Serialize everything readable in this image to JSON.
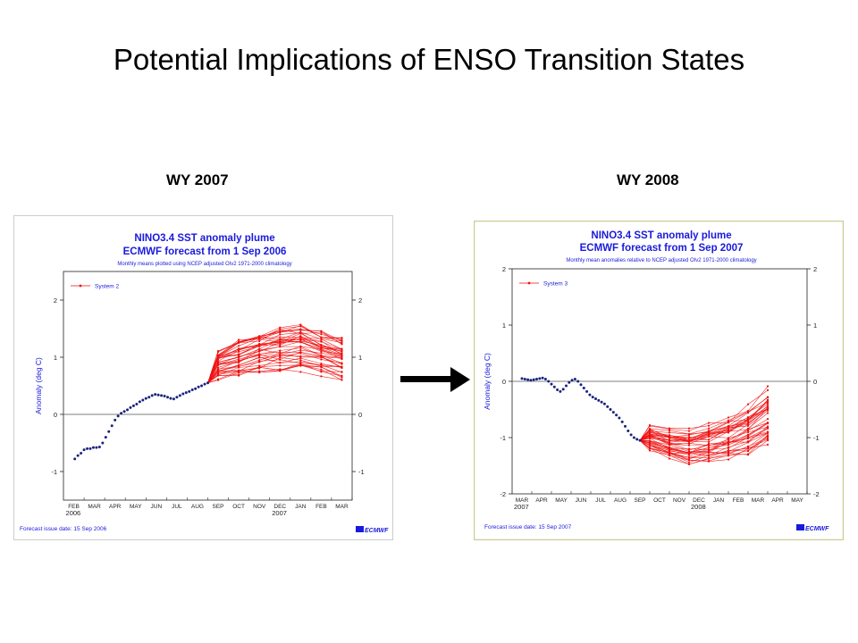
{
  "slide": {
    "title": "Potential Implications of ENSO Transition States",
    "left_label": "WY 2007",
    "right_label": "WY 2008"
  },
  "colors": {
    "observed": "#1a237e",
    "forecast": "#ee1111",
    "panel_border": "#cccc99",
    "title_blue": "#1a1adc"
  },
  "icons": {
    "arrow": "right-arrow-icon",
    "logo": "ecmwf-logo-icon"
  },
  "chart_data": [
    {
      "type": "line",
      "title": "NINO3.4 SST anomaly plume",
      "subtitle": "ECMWF forecast from  1 Sep 2006",
      "note": "Monthly means plotted using NCEP adjusted OIv2 1971-2000 climatology",
      "ylabel": "Anomaly (deg C)",
      "xlabel": "",
      "ylim": [
        -1.5,
        2.5
      ],
      "yticks": [
        -1,
        0,
        1,
        2
      ],
      "months": [
        "FEB",
        "MAR",
        "APR",
        "MAY",
        "JUN",
        "JUL",
        "AUG",
        "SEP",
        "OCT",
        "NOV",
        "DEC",
        "JAN",
        "FEB",
        "MAR"
      ],
      "years": [
        {
          "label": "2006",
          "at": "FEB"
        },
        {
          "label": "2007",
          "at": "DEC"
        }
      ],
      "legend": [
        "System 2"
      ],
      "legend_position": "top-left",
      "zero_line": true,
      "footer": "Forecast issue date: 15 Sep 2006",
      "logo": "ECMWF",
      "observed": {
        "x": [
          0.05,
          0.2,
          0.35,
          0.5,
          0.65,
          0.8,
          0.95,
          1.1,
          1.25,
          1.4,
          1.55,
          1.7,
          1.85,
          2.0,
          2.15,
          2.3,
          2.45,
          2.6,
          2.75,
          2.9,
          3.05,
          3.2,
          3.35,
          3.5,
          3.65,
          3.8,
          3.95,
          4.1,
          4.25,
          4.4,
          4.55,
          4.7,
          4.85,
          5.0,
          5.15,
          5.3,
          5.45,
          5.6,
          5.75,
          5.9,
          6.05,
          6.2,
          6.35,
          6.5
        ],
        "y": [
          -0.78,
          -0.72,
          -0.68,
          -0.62,
          -0.6,
          -0.6,
          -0.58,
          -0.58,
          -0.57,
          -0.5,
          -0.4,
          -0.3,
          -0.2,
          -0.1,
          -0.03,
          0.02,
          0.05,
          0.08,
          0.12,
          0.15,
          0.18,
          0.22,
          0.25,
          0.28,
          0.3,
          0.33,
          0.35,
          0.34,
          0.33,
          0.32,
          0.3,
          0.28,
          0.27,
          0.3,
          0.33,
          0.36,
          0.38,
          0.4,
          0.43,
          0.45,
          0.48,
          0.5,
          0.53,
          0.55
        ]
      },
      "ensemble": {
        "start": 6.5,
        "x": [
          7,
          8,
          9,
          10,
          11,
          12,
          13
        ],
        "base_y": [
          0.85,
          0.95,
          1.05,
          1.1,
          1.12,
          1.05,
          0.95
        ],
        "spread": [
          0.3,
          0.4,
          0.45,
          0.48,
          0.5,
          0.45,
          0.42
        ],
        "members": 40
      }
    },
    {
      "type": "line",
      "title": "NINO3.4 SST anomaly plume",
      "subtitle": "ECMWF forecast from  1 Sep 2007",
      "note": "Monthly mean anomalies relative to NCEP adjusted OIv2 1971-2000 climatology",
      "ylabel": "Anomaly (deg C)",
      "xlabel": "",
      "ylim": [
        -2,
        2
      ],
      "yticks": [
        -2,
        -1,
        0,
        1,
        2
      ],
      "months": [
        "MAR",
        "APR",
        "MAY",
        "JUN",
        "JUL",
        "AUG",
        "SEP",
        "OCT",
        "NOV",
        "DEC",
        "JAN",
        "FEB",
        "MAR",
        "APR",
        "MAY"
      ],
      "years": [
        {
          "label": "2007",
          "at": "MAR"
        },
        {
          "label": "2008",
          "at": "DEC"
        }
      ],
      "legend": [
        "System 3"
      ],
      "legend_position": "top-left",
      "zero_line": true,
      "footer": "Forecast issue date: 15 Sep 2007",
      "logo": "ECMWF",
      "observed": {
        "x": [
          0.0,
          0.15,
          0.3,
          0.45,
          0.6,
          0.75,
          0.9,
          1.05,
          1.2,
          1.35,
          1.5,
          1.65,
          1.8,
          1.95,
          2.1,
          2.25,
          2.4,
          2.55,
          2.7,
          2.85,
          3.0,
          3.15,
          3.3,
          3.45,
          3.6,
          3.75,
          3.9,
          4.05,
          4.2,
          4.35,
          4.5,
          4.65,
          4.8,
          4.95,
          5.1,
          5.25,
          5.4,
          5.55,
          5.7,
          5.85,
          6.0
        ],
        "y": [
          0.05,
          0.04,
          0.03,
          0.02,
          0.03,
          0.04,
          0.05,
          0.06,
          0.04,
          0.0,
          -0.05,
          -0.1,
          -0.15,
          -0.18,
          -0.14,
          -0.08,
          -0.02,
          0.02,
          0.04,
          0.0,
          -0.06,
          -0.12,
          -0.18,
          -0.24,
          -0.28,
          -0.31,
          -0.34,
          -0.37,
          -0.4,
          -0.45,
          -0.5,
          -0.55,
          -0.6,
          -0.65,
          -0.72,
          -0.8,
          -0.88,
          -0.95,
          -1.0,
          -1.03,
          -1.05
        ]
      },
      "ensemble": {
        "start": 6.0,
        "x": [
          6.5,
          7.5,
          8.5,
          9.5,
          10.5,
          11.5,
          12.5
        ],
        "base_y": [
          -1.0,
          -1.1,
          -1.15,
          -1.1,
          -1.0,
          -0.85,
          -0.6
        ],
        "spread": [
          0.25,
          0.3,
          0.35,
          0.4,
          0.45,
          0.5,
          0.6
        ],
        "members": 40
      }
    }
  ]
}
